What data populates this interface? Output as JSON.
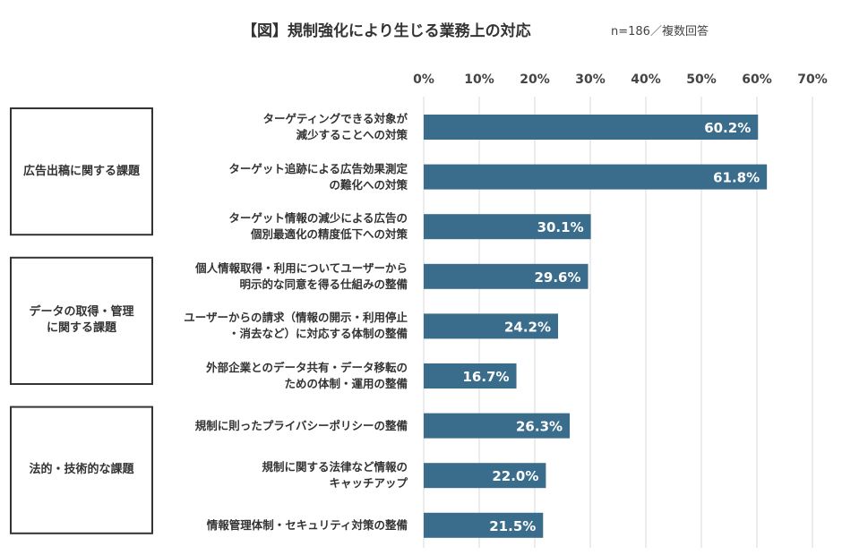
{
  "chart_data": {
    "type": "bar",
    "orientation": "horizontal",
    "title": "【図】規制強化により生じる業務上の対応",
    "subtitle": "n=186／複数回答",
    "color": "#3a6d8c",
    "xlim": [
      0,
      70
    ],
    "xticks": [
      {
        "value": 0,
        "label": "0%"
      },
      {
        "value": 10,
        "label": "10%"
      },
      {
        "value": 20,
        "label": "20%"
      },
      {
        "value": 30,
        "label": "30%"
      },
      {
        "value": 40,
        "label": "40%"
      },
      {
        "value": 50,
        "label": "50%"
      },
      {
        "value": 60,
        "label": "60%"
      },
      {
        "value": 70,
        "label": "70%"
      }
    ],
    "grid": true,
    "groups": [
      {
        "label": "広告出稿に関する課題",
        "categories": [
          "ターゲティングできる対象が\n減少することへの対策",
          "ターゲット追跡による広告効果測定\nの難化への対策",
          "ターゲット情報の減少による広告の\n個別最適化の精度低下への対策"
        ],
        "values": [
          60.2,
          61.8,
          30.1
        ],
        "value_labels": [
          "60.2%",
          "61.8%",
          "30.1%"
        ]
      },
      {
        "label": "データの取得・管理\nに関する課題",
        "categories": [
          "個人情報取得・利用についてユーザーから\n明示的な同意を得る仕組みの整備",
          "ユーザーからの請求（情報の開示・利用停止\n・消去など）に対応する体制の整備",
          "外部企業とのデータ共有・データ移転の\nための体制・運用の整備"
        ],
        "values": [
          29.6,
          24.2,
          16.7
        ],
        "value_labels": [
          "29.6%",
          "24.2%",
          "16.7%"
        ]
      },
      {
        "label": "法的・技術的な課題",
        "categories": [
          "規制に則ったプライバシーポリシーの整備",
          "規制に関する法律など情報の\nキャッチアップ",
          "情報管理体制・セキュリティ対策の整備"
        ],
        "values": [
          26.3,
          22.0,
          21.5
        ],
        "value_labels": [
          "26.3%",
          "22.0%",
          "21.5%"
        ]
      }
    ]
  }
}
